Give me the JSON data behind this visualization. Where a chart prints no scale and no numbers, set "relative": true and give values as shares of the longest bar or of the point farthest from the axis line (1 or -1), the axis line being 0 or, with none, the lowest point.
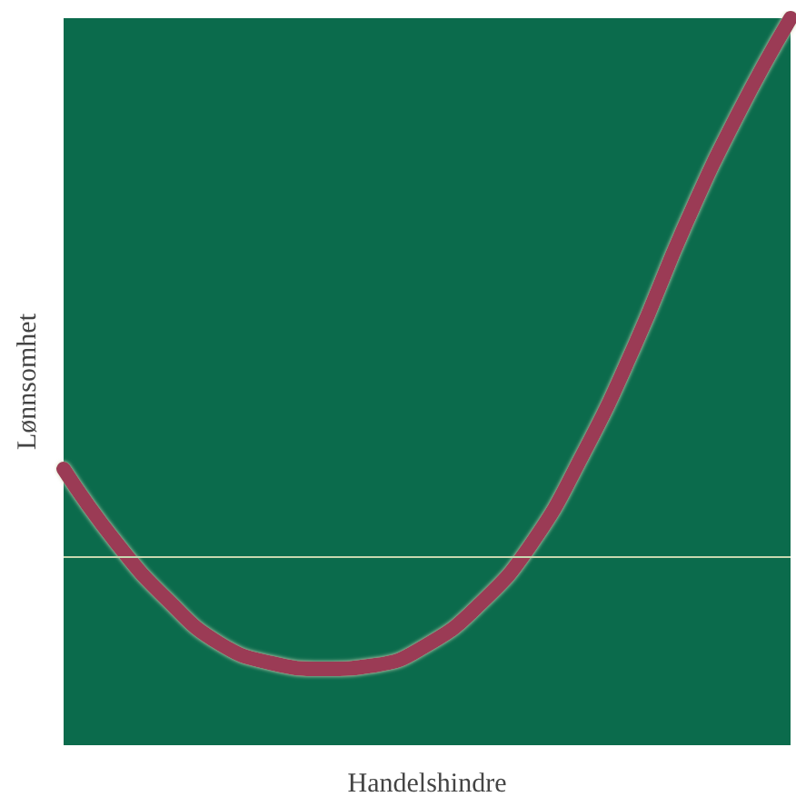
{
  "chart_data": {
    "type": "line",
    "xlabel": "Handelshindre",
    "ylabel": "Lønnsomhet",
    "relative": true,
    "grid": false,
    "line_style": "solid",
    "categories": [
      null,
      null,
      null,
      null,
      null,
      null,
      null,
      null,
      null,
      null,
      null,
      null,
      null,
      null,
      null
    ],
    "series": [
      {
        "color": "#9b3a55",
        "values": [
          0.38,
          0.28,
          0.2,
          0.14,
          0.113,
          0.105,
          0.11,
          0.138,
          0.193,
          0.276,
          0.4,
          0.55,
          0.72,
          0.87,
          1.0
        ]
      }
    ],
    "ref_lines": [
      {
        "axis": "y",
        "value": 0.257,
        "color": "#c8d8b0"
      }
    ]
  }
}
